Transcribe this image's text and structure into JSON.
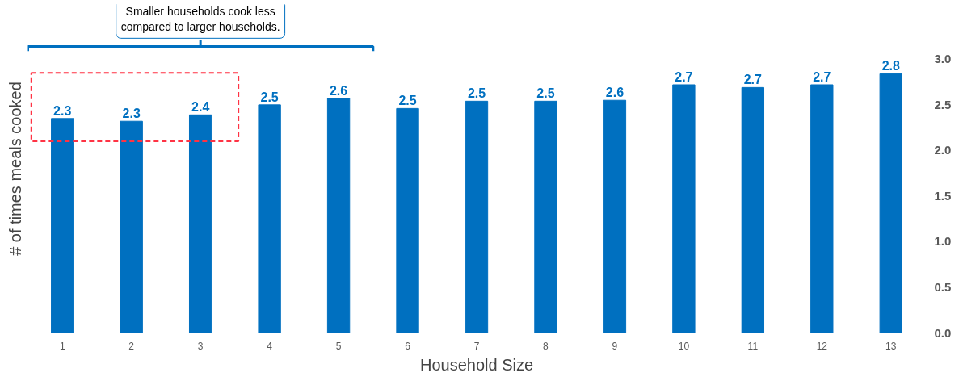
{
  "chart_data": {
    "type": "bar",
    "xlabel": "Household Size",
    "ylabel": "# of times meals cooked",
    "categories": [
      "1",
      "2",
      "3",
      "4",
      "5",
      "6",
      "7",
      "8",
      "9",
      "10",
      "11",
      "12",
      "13"
    ],
    "values": [
      2.35,
      2.32,
      2.39,
      2.5,
      2.57,
      2.46,
      2.54,
      2.54,
      2.55,
      2.72,
      2.69,
      2.72,
      2.84
    ],
    "value_labels": [
      "2.3",
      "2.3",
      "2.4",
      "2.5",
      "2.6",
      "2.5",
      "2.5",
      "2.5",
      "2.6",
      "2.7",
      "2.7",
      "2.7",
      "2.8"
    ],
    "color": "#0070c0",
    "yticks": [
      "0.0",
      "0.5",
      "1.0",
      "1.5",
      "2.0",
      "2.5",
      "3.0"
    ],
    "grid": false,
    "annotations": [
      "Smaller households cook less\ncompared to larger households."
    ]
  }
}
